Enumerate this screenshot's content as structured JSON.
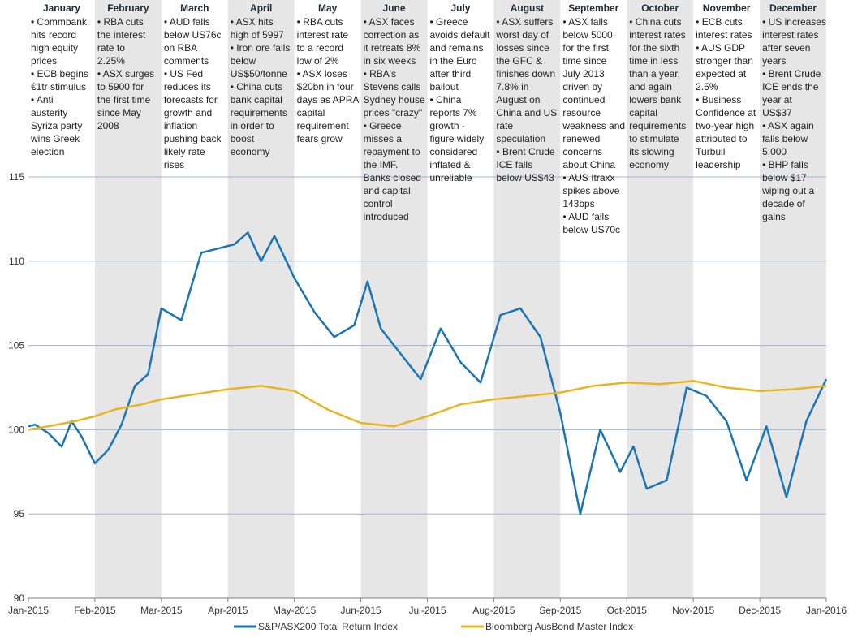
{
  "chart_data": {
    "type": "line",
    "title": "",
    "xlabel": "",
    "ylabel": "",
    "ylim": [
      90,
      115
    ],
    "yticks": [
      90,
      95,
      100,
      105,
      110,
      115
    ],
    "x_tick_labels": [
      "Jan-2015",
      "Feb-2015",
      "Mar-2015",
      "Apr-2015",
      "May-2015",
      "Jun-2015",
      "Jul-2015",
      "Aug-2015",
      "Sep-2015",
      "Oct-2015",
      "Nov-2015",
      "Dec-2015",
      "Jan-2016"
    ],
    "grid": true,
    "legend_position": "bottom",
    "colors": {
      "asx": "#1a75b5",
      "bond": "#e6b521",
      "band": "#e6e6e6",
      "grid": "#9bb6d6"
    },
    "months": [
      {
        "name": "January",
        "notes": [
          "• Commbank",
          "hits record",
          "high equity",
          "prices",
          "• ECB begins",
          "€1tr stimulus",
          "• Anti",
          "austerity",
          "Syriza party",
          "wins Greek",
          "election"
        ]
      },
      {
        "name": "February",
        "notes": [
          "• RBA cuts",
          "the interest",
          "rate to",
          "2.25%",
          "• ASX surges",
          "to 5900 for",
          "the first time",
          "since May",
          "2008"
        ]
      },
      {
        "name": "March",
        "notes": [
          "• AUD falls",
          "below US76c",
          "on RBA",
          "comments",
          "• US Fed",
          "reduces its",
          "forecasts for",
          "growth and",
          "inflation",
          "pushing back",
          "likely rate",
          "rises"
        ]
      },
      {
        "name": "April",
        "notes": [
          "• ASX hits",
          "high of 5997",
          "• Iron ore falls",
          "below",
          "US$50/tonne",
          "• China cuts",
          "bank capital",
          "requirements",
          "in order to",
          "boost",
          "economy"
        ]
      },
      {
        "name": "May",
        "notes": [
          "• RBA cuts",
          "interest rate",
          "to a record",
          "low of 2%",
          "• ASX loses",
          "$20bn in four",
          "days as APRA",
          "capital",
          "requirement",
          "fears grow"
        ]
      },
      {
        "name": "June",
        "notes": [
          "• ASX faces",
          "correction as",
          "it retreats 8%",
          "in six weeks",
          "• RBA's",
          "Stevens calls",
          "Sydney house",
          "prices \"crazy\"",
          "• Greece",
          "misses a",
          "repayment to",
          "the IMF.",
          "Banks closed",
          "and capital",
          "control",
          "introduced"
        ]
      },
      {
        "name": "July",
        "notes": [
          "• Greece",
          "avoids default",
          "and remains",
          "in the Euro",
          "after third",
          "bailout",
          "• China",
          "reports 7%",
          "growth -",
          "figure widely",
          "considered",
          "inflated &",
          "unreliable"
        ]
      },
      {
        "name": "August",
        "notes": [
          "• ASX suffers",
          "worst day of",
          "losses since",
          "the GFC &",
          "finishes down",
          "7.8% in",
          "August on",
          "China and US",
          "rate",
          "speculation",
          "• Brent Crude",
          "ICE falls",
          "below US$43"
        ]
      },
      {
        "name": "September",
        "notes": [
          "• ASX falls",
          "below 5000",
          "for the first",
          "time since",
          "July 2013",
          "driven by",
          "continued",
          "resource",
          "weakness and",
          "renewed",
          "concerns",
          "about China",
          "• AUS Itraxx",
          "spikes above",
          "143bps",
          "• AUD falls",
          "below US70c"
        ]
      },
      {
        "name": "October",
        "notes": [
          "• China cuts",
          "interest rates",
          "for the sixth",
          "time in less",
          "than a year,",
          "and again",
          "lowers bank",
          "capital",
          "requirements",
          "to stimulate",
          "its slowing",
          "economy"
        ]
      },
      {
        "name": "November",
        "notes": [
          "• ECB cuts",
          "interest rates",
          "• AUS GDP",
          "stronger than",
          "expected at",
          "2.5%",
          "• Business",
          "Confidence at",
          "two-year high",
          "attributed to",
          "Turbull",
          "leadership"
        ]
      },
      {
        "name": "December",
        "notes": [
          "• US increases",
          "interest rates",
          "after seven",
          "years",
          "• Brent Crude",
          "ICE ends the",
          "year at",
          "US$37",
          "• ASX again",
          "falls below",
          "5,000",
          "• BHP falls",
          "below $17",
          "wiping out a",
          "decade of",
          "gains"
        ]
      }
    ],
    "series": [
      {
        "name": "S&P/ASX200 Total Return Index",
        "x": [
          0,
          0.1,
          0.3,
          0.5,
          0.65,
          0.8,
          1.0,
          1.2,
          1.4,
          1.6,
          1.8,
          2.0,
          2.3,
          2.6,
          2.9,
          3.1,
          3.3,
          3.5,
          3.7,
          4.0,
          4.3,
          4.6,
          4.9,
          5.1,
          5.3,
          5.6,
          5.9,
          6.2,
          6.5,
          6.8,
          7.1,
          7.4,
          7.7,
          8.0,
          8.3,
          8.6,
          8.9,
          9.1,
          9.3,
          9.6,
          9.9,
          10.2,
          10.5,
          10.8,
          11.1,
          11.4,
          11.7,
          12.0
        ],
        "values": [
          100.2,
          100.3,
          99.8,
          99.0,
          100.5,
          99.6,
          98.0,
          98.8,
          100.3,
          102.6,
          103.3,
          107.2,
          106.5,
          110.5,
          110.8,
          111.0,
          111.7,
          110.0,
          111.5,
          109.0,
          107.0,
          105.5,
          106.2,
          108.8,
          106.0,
          104.5,
          103.0,
          106.0,
          104.0,
          102.8,
          106.8,
          107.2,
          105.5,
          101.0,
          95.0,
          100.0,
          97.5,
          99.0,
          96.5,
          97.0,
          102.5,
          102.0,
          100.5,
          97.0,
          100.2,
          96.0,
          100.5,
          103.0
        ]
      },
      {
        "name": "Bloomberg AusBond Master Index",
        "x": [
          0,
          0.3,
          0.7,
          1.0,
          1.3,
          1.7,
          2.0,
          2.5,
          3.0,
          3.5,
          4.0,
          4.5,
          5.0,
          5.5,
          6.0,
          6.5,
          7.0,
          7.5,
          8.0,
          8.5,
          9.0,
          9.5,
          10.0,
          10.5,
          11.0,
          11.5,
          12.0
        ],
        "values": [
          100.0,
          100.2,
          100.5,
          100.8,
          101.2,
          101.5,
          101.8,
          102.1,
          102.4,
          102.6,
          102.3,
          101.2,
          100.4,
          100.2,
          100.8,
          101.5,
          101.8,
          102.0,
          102.2,
          102.6,
          102.8,
          102.7,
          102.9,
          102.5,
          102.3,
          102.4,
          102.6
        ]
      }
    ]
  }
}
